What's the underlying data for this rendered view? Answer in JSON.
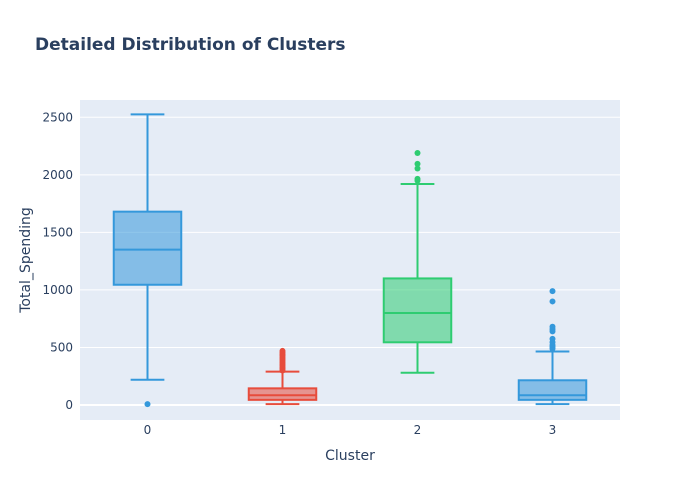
{
  "chart_data": {
    "type": "box",
    "title": "Detailed Distribution of Clusters",
    "xlabel": "Cluster",
    "ylabel": "Total_Spending",
    "categories": [
      "0",
      "1",
      "2",
      "3"
    ],
    "ylim": [
      -130,
      2650
    ],
    "yticks": [
      0,
      500,
      1000,
      1500,
      2000,
      2500
    ],
    "ytick_labels": [
      "0",
      "500",
      "1000",
      "1500",
      "2000",
      "2500"
    ],
    "grid": true,
    "background": "#e5ecf6",
    "series": [
      {
        "color": "#3498db",
        "fill": "rgba(52,152,219,0.55)",
        "lowerfence": 220,
        "q1": 1045,
        "median": 1350,
        "q3": 1680,
        "upperfence": 2525,
        "outliers": [
          8
        ]
      },
      {
        "color": "#e74c3c",
        "fill": "rgba(231,76,60,0.55)",
        "lowerfence": 8,
        "q1": 45,
        "median": 85,
        "q3": 145,
        "upperfence": 290,
        "outliers": [
          300,
          315,
          325,
          340,
          355,
          370,
          385,
          400,
          415,
          430,
          440,
          455,
          470
        ]
      },
      {
        "color": "#2ecc71",
        "fill": "rgba(46,204,113,0.55)",
        "lowerfence": 280,
        "q1": 545,
        "median": 800,
        "q3": 1100,
        "upperfence": 1920,
        "outliers": [
          1950,
          1965,
          2055,
          2095,
          2190
        ]
      },
      {
        "color": "#3498db",
        "fill": "rgba(52,152,219,0.55)",
        "lowerfence": 8,
        "q1": 45,
        "median": 85,
        "q3": 215,
        "upperfence": 465,
        "outliers": [
          490,
          505,
          520,
          545,
          575,
          640,
          660,
          680,
          900,
          990
        ]
      }
    ]
  }
}
